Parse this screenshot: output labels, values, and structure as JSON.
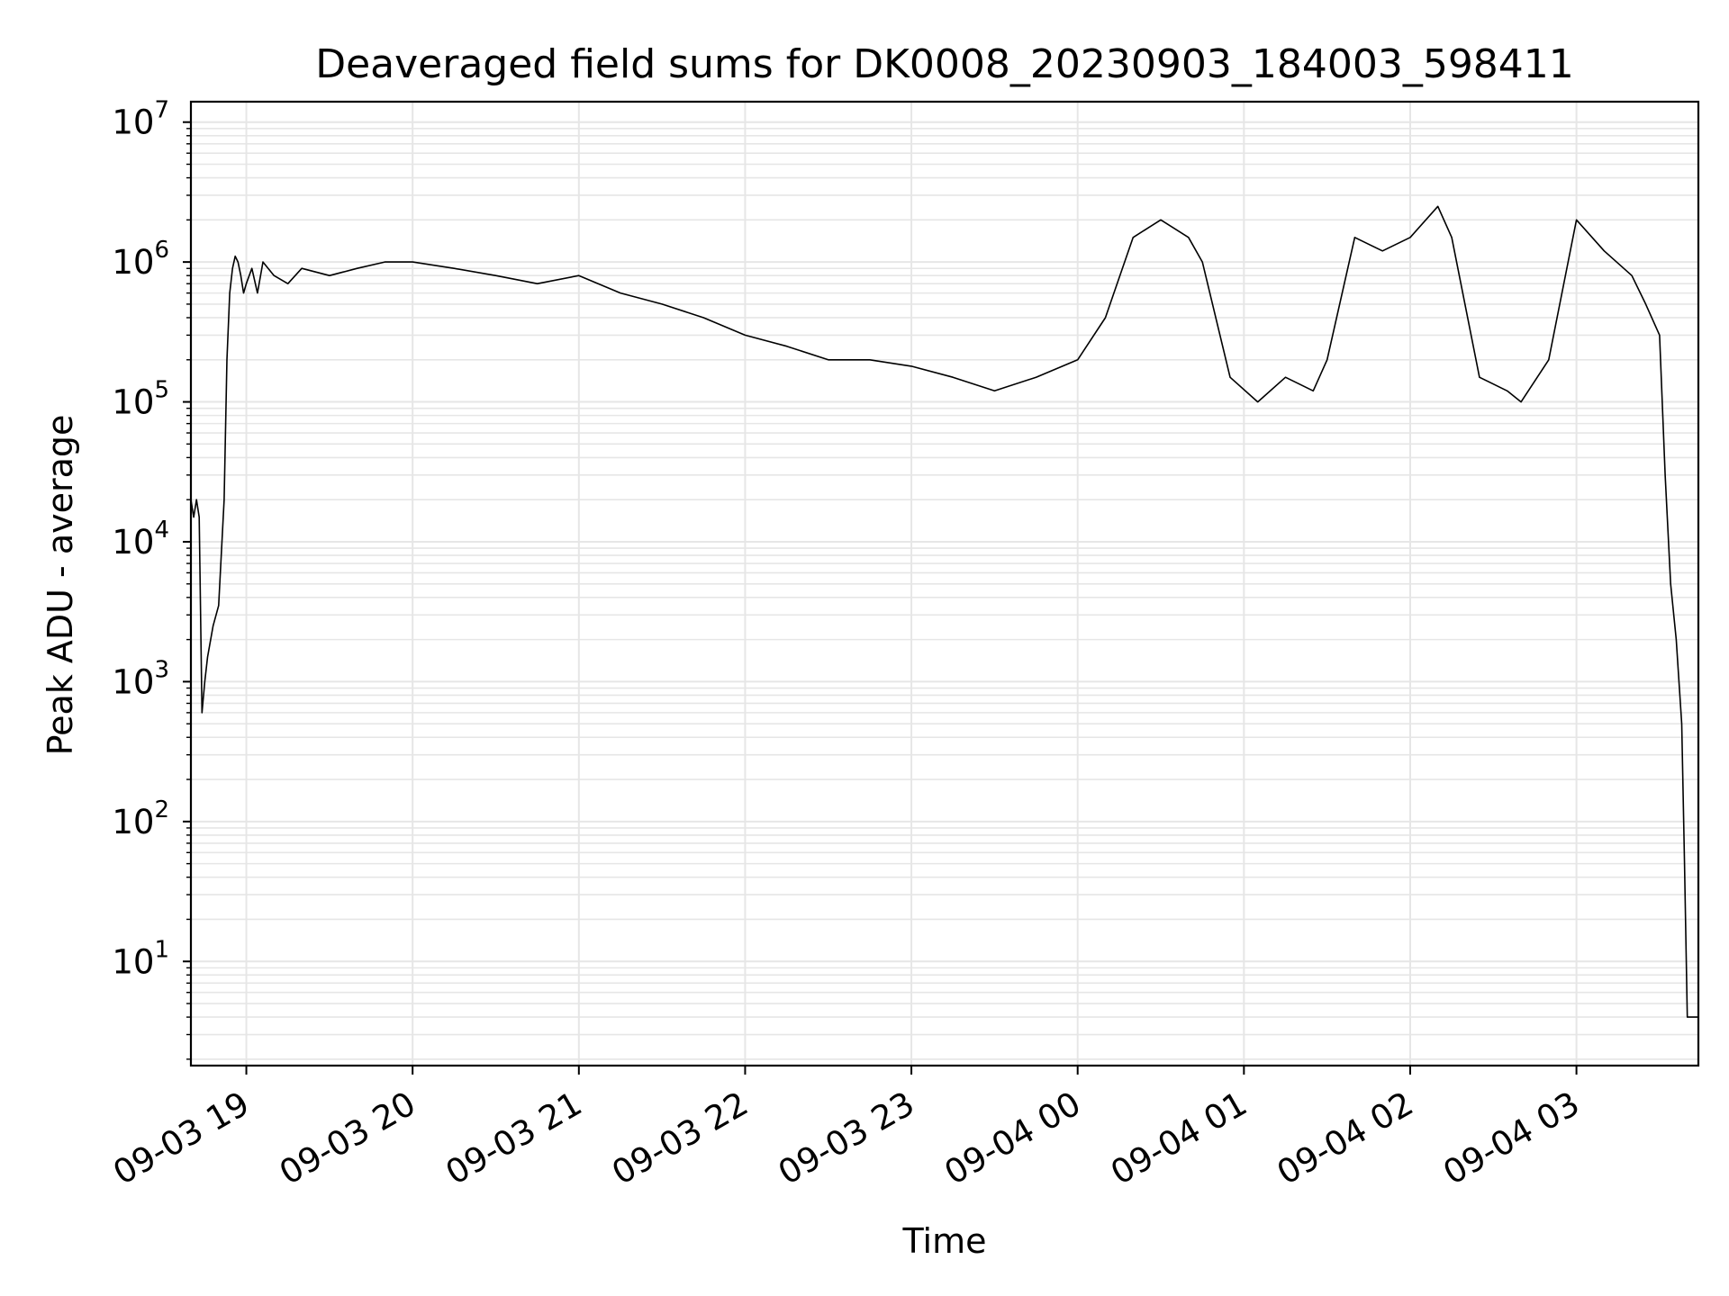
{
  "chart_data": {
    "type": "line",
    "title": "Deaveraged field sums for DK0008_20230903_184003_598411",
    "xlabel": "Time",
    "ylabel": "Peak ADU - average",
    "yscale": "log",
    "ylim": [
      1.8,
      14000000
    ],
    "xlim": [
      "2023-09-03 18:40",
      "2023-09-04 03:44"
    ],
    "grid": "both (major and minor)",
    "line_color": "#000000",
    "grid_color": "#e6e6e6",
    "x_tick_labels": [
      "09-03 19",
      "09-03 20",
      "09-03 21",
      "09-03 22",
      "09-03 23",
      "09-04 00",
      "09-04 01",
      "09-04 02",
      "09-04 03"
    ],
    "y_tick_labels": [
      {
        "base": "10",
        "exp": "1"
      },
      {
        "base": "10",
        "exp": "2"
      },
      {
        "base": "10",
        "exp": "3"
      },
      {
        "base": "10",
        "exp": "4"
      },
      {
        "base": "10",
        "exp": "5"
      },
      {
        "base": "10",
        "exp": "6"
      },
      {
        "base": "10",
        "exp": "7"
      }
    ],
    "series": [
      {
        "x": [
          "2023-09-03 18:40",
          "2023-09-03 18:41",
          "2023-09-03 18:42",
          "2023-09-03 18:43",
          "2023-09-03 18:44",
          "2023-09-03 18:45",
          "2023-09-03 18:46",
          "2023-09-03 18:48",
          "2023-09-03 18:50",
          "2023-09-03 18:52",
          "2023-09-03 18:53",
          "2023-09-03 18:54",
          "2023-09-03 18:55",
          "2023-09-03 18:56",
          "2023-09-03 18:57",
          "2023-09-03 18:58",
          "2023-09-03 18:59",
          "2023-09-03 19:00",
          "2023-09-03 19:02",
          "2023-09-03 19:04",
          "2023-09-03 19:06",
          "2023-09-03 19:10",
          "2023-09-03 19:15",
          "2023-09-03 19:20",
          "2023-09-03 19:30",
          "2023-09-03 19:40",
          "2023-09-03 19:50",
          "2023-09-03 20:00",
          "2023-09-03 20:15",
          "2023-09-03 20:30",
          "2023-09-03 20:45",
          "2023-09-03 21:00",
          "2023-09-03 21:15",
          "2023-09-03 21:30",
          "2023-09-03 21:45",
          "2023-09-03 22:00",
          "2023-09-03 22:15",
          "2023-09-03 22:30",
          "2023-09-03 22:45",
          "2023-09-03 23:00",
          "2023-09-03 23:15",
          "2023-09-03 23:30",
          "2023-09-03 23:45",
          "2023-09-04 00:00",
          "2023-09-04 00:10",
          "2023-09-04 00:20",
          "2023-09-04 00:30",
          "2023-09-04 00:40",
          "2023-09-04 00:45",
          "2023-09-04 00:55",
          "2023-09-04 01:05",
          "2023-09-04 01:15",
          "2023-09-04 01:25",
          "2023-09-04 01:30",
          "2023-09-04 01:40",
          "2023-09-04 01:50",
          "2023-09-04 02:00",
          "2023-09-04 02:10",
          "2023-09-04 02:15",
          "2023-09-04 02:25",
          "2023-09-04 02:35",
          "2023-09-04 02:40",
          "2023-09-04 02:50",
          "2023-09-04 03:00",
          "2023-09-04 03:10",
          "2023-09-04 03:20",
          "2023-09-04 03:25",
          "2023-09-04 03:30",
          "2023-09-04 03:32",
          "2023-09-04 03:34",
          "2023-09-04 03:36",
          "2023-09-04 03:38",
          "2023-09-04 03:39",
          "2023-09-04 03:40",
          "2023-09-04 03:44"
        ],
        "y": [
          20000,
          15000,
          20000,
          15000,
          600,
          1000,
          1500,
          2500,
          3500,
          20000,
          200000,
          600000,
          900000,
          1100000,
          1000000,
          800000,
          600000,
          700000,
          900000,
          600000,
          1000000,
          800000,
          700000,
          900000,
          800000,
          900000,
          1000000,
          1000000,
          900000,
          800000,
          700000,
          800000,
          600000,
          500000,
          400000,
          300000,
          250000,
          200000,
          200000,
          180000,
          150000,
          120000,
          150000,
          200000,
          400000,
          1500000,
          2000000,
          1500000,
          1000000,
          150000,
          100000,
          150000,
          120000,
          200000,
          1500000,
          1200000,
          1500000,
          2500000,
          1500000,
          150000,
          120000,
          100000,
          200000,
          2000000,
          1200000,
          800000,
          500000,
          300000,
          30000,
          5000,
          2000,
          500,
          50,
          4,
          4
        ]
      }
    ]
  }
}
